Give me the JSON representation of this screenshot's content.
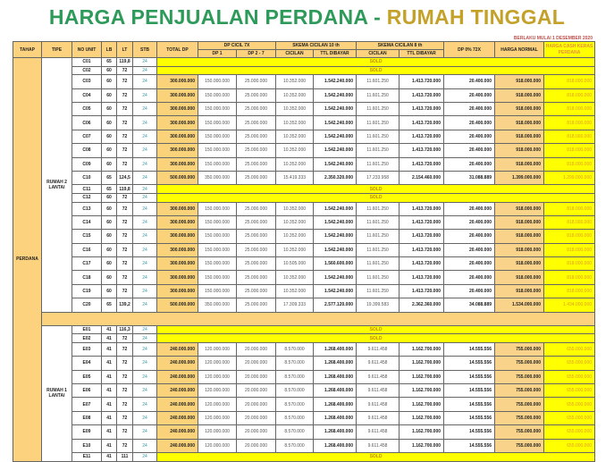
{
  "title": {
    "part1": "HARGA PENJUALAN PERDANA - ",
    "part2": "RUMAH TINGGAL"
  },
  "effective_note": "BERLAKU MULAI 1 DESEMBER 2020",
  "headers": {
    "tahap": "TAHAP",
    "tipe": "TIPE",
    "no_unit": "NO UNIT",
    "lb": "LB",
    "lt": "LT",
    "stb": "STB",
    "total_dp": "TOTAL DP",
    "dp_cicil": "DP CICIL 7X",
    "dp1": "DP 1",
    "dp27": "DP 2 - 7",
    "skema10": "SKEMA CICILAN 10 th",
    "skema8": "SKEMA CICILAN 8 th",
    "cicilan": "CICILAN",
    "ttl": "TTL DIBAYAR",
    "dp0": "DP 0% 72X",
    "harga_normal": "HARGA NORMAL",
    "harga_cash": "HARGA CASH KERAS PERDANA"
  },
  "tahap": "PERDANA",
  "sold_label": "SOLD",
  "groups": [
    {
      "tipe": "RUMAH 2 LANTAI",
      "rows": [
        [
          "C01",
          "65",
          "119,8",
          "24",
          null
        ],
        [
          "C02",
          "60",
          "72",
          "24",
          null
        ],
        [
          "C03",
          "60",
          "72",
          "24",
          [
            "300.000.000",
            "150.000.000",
            "25.000.000",
            "10.352.000",
            "1.542.240.000",
            "11.601.250",
            "1.413.720.000",
            "20.400.000",
            "918.000.000",
            "818.000.000"
          ]
        ],
        [
          "C04",
          "60",
          "72",
          "24",
          [
            "300.000.000",
            "150.000.000",
            "25.000.000",
            "10.352.000",
            "1.542.240.000",
            "11.601.250",
            "1.413.720.000",
            "20.400.000",
            "918.000.000",
            "818.000.000"
          ]
        ],
        [
          "C05",
          "60",
          "72",
          "24",
          [
            "300.000.000",
            "150.000.000",
            "25.000.000",
            "10.352.000",
            "1.542.240.000",
            "11.601.250",
            "1.413.720.000",
            "20.400.000",
            "918.000.000",
            "818.000.000"
          ]
        ],
        [
          "C06",
          "60",
          "72",
          "24",
          [
            "300.000.000",
            "150.000.000",
            "25.000.000",
            "10.352.000",
            "1.542.240.000",
            "11.601.250",
            "1.413.720.000",
            "20.400.000",
            "918.000.000",
            "818.000.000"
          ]
        ],
        [
          "C07",
          "60",
          "72",
          "24",
          [
            "300.000.000",
            "150.000.000",
            "25.000.000",
            "10.352.000",
            "1.542.240.000",
            "11.601.250",
            "1.413.720.000",
            "20.400.000",
            "918.000.000",
            "818.000.000"
          ]
        ],
        [
          "C08",
          "60",
          "72",
          "24",
          [
            "300.000.000",
            "150.000.000",
            "25.000.000",
            "10.352.000",
            "1.542.240.000",
            "11.601.250",
            "1.413.720.000",
            "20.400.000",
            "918.000.000",
            "818.000.000"
          ]
        ],
        [
          "C09",
          "60",
          "72",
          "24",
          [
            "300.000.000",
            "150.000.000",
            "25.000.000",
            "10.352.000",
            "1.542.240.000",
            "11.601.250",
            "1.413.720.000",
            "20.400.000",
            "918.000.000",
            "818.000.000"
          ]
        ],
        [
          "C10",
          "65",
          "124,5",
          "24",
          [
            "500.000.000",
            "350.000.000",
            "25.000.000",
            "15.419.333",
            "2.350.320.000",
            "17.233.958",
            "2.154.460.000",
            "31.088.889",
            "1.399.000.000",
            "1.299.000.000"
          ]
        ],
        [
          "C11",
          "65",
          "119,8",
          "24",
          null
        ],
        [
          "C12",
          "60",
          "72",
          "24",
          null
        ],
        [
          "C13",
          "60",
          "72",
          "24",
          [
            "300.000.000",
            "150.000.000",
            "25.000.000",
            "10.352.000",
            "1.542.240.000",
            "11.601.250",
            "1.413.720.000",
            "20.400.000",
            "918.000.000",
            "818.000.000"
          ]
        ],
        [
          "C14",
          "60",
          "72",
          "24",
          [
            "300.000.000",
            "150.000.000",
            "25.000.000",
            "10.352.000",
            "1.542.240.000",
            "11.601.250",
            "1.413.720.000",
            "20.400.000",
            "918.000.000",
            "818.000.000"
          ]
        ],
        [
          "C15",
          "60",
          "72",
          "24",
          [
            "300.000.000",
            "150.000.000",
            "25.000.000",
            "10.352.000",
            "1.542.240.000",
            "11.601.250",
            "1.413.720.000",
            "20.400.000",
            "918.000.000",
            "818.000.000"
          ]
        ],
        [
          "C16",
          "60",
          "72",
          "24",
          [
            "300.000.000",
            "150.000.000",
            "25.000.000",
            "10.352.000",
            "1.542.240.000",
            "11.601.250",
            "1.413.720.000",
            "20.400.000",
            "918.000.000",
            "818.000.000"
          ]
        ],
        [
          "C17",
          "60",
          "72",
          "24",
          [
            "300.000.000",
            "150.000.000",
            "25.000.000",
            "10.505.000",
            "1.560.600.000",
            "11.601.250",
            "1.413.720.000",
            "20.400.000",
            "918.000.000",
            "818.000.000"
          ]
        ],
        [
          "C18",
          "60",
          "72",
          "24",
          [
            "300.000.000",
            "150.000.000",
            "25.000.000",
            "10.352.000",
            "1.542.240.000",
            "11.601.250",
            "1.413.720.000",
            "20.400.000",
            "918.000.000",
            "818.000.000"
          ]
        ],
        [
          "C19",
          "60",
          "72",
          "24",
          [
            "300.000.000",
            "150.000.000",
            "25.000.000",
            "10.352.000",
            "1.542.240.000",
            "11.601.250",
            "1.413.720.000",
            "20.400.000",
            "918.000.000",
            "818.000.000"
          ]
        ],
        [
          "C20",
          "65",
          "139,2",
          "24",
          [
            "500.000.000",
            "350.000.000",
            "25.000.000",
            "17.309.333",
            "2.577.120.000",
            "19.399.583",
            "2.362.360.000",
            "34.088.889",
            "1.534.000.000",
            "1.434.000.000"
          ]
        ]
      ]
    },
    {
      "tipe": "RUMAH 1 LANTAI",
      "rows": [
        [
          "E01",
          "41",
          "116,3",
          "24",
          null
        ],
        [
          "E02",
          "41",
          "72",
          "24",
          null
        ],
        [
          "E03",
          "41",
          "72",
          "24",
          [
            "240.000.000",
            "120.000.000",
            "20.000.000",
            "8.570.000",
            "1.268.400.000",
            "9.611.458",
            "1.162.700.000",
            "14.555.556",
            "755.000.000",
            "655.000.000"
          ]
        ],
        [
          "E04",
          "41",
          "72",
          "24",
          [
            "240.000.000",
            "120.000.000",
            "20.000.000",
            "8.570.000",
            "1.268.400.000",
            "9.611.458",
            "1.162.700.000",
            "14.555.556",
            "755.000.000",
            "655.000.000"
          ]
        ],
        [
          "E05",
          "41",
          "72",
          "24",
          [
            "240.000.000",
            "120.000.000",
            "20.000.000",
            "8.570.000",
            "1.268.400.000",
            "9.611.458",
            "1.162.700.000",
            "14.555.556",
            "755.000.000",
            "655.000.000"
          ]
        ],
        [
          "E06",
          "41",
          "72",
          "24",
          [
            "240.000.000",
            "120.000.000",
            "20.000.000",
            "8.570.000",
            "1.268.400.000",
            "9.611.458",
            "1.162.700.000",
            "14.555.556",
            "755.000.000",
            "655.000.000"
          ]
        ],
        [
          "E07",
          "41",
          "72",
          "24",
          [
            "240.000.000",
            "120.000.000",
            "20.000.000",
            "8.570.000",
            "1.268.400.000",
            "9.611.458",
            "1.162.700.000",
            "14.555.556",
            "755.000.000",
            "655.000.000"
          ]
        ],
        [
          "E08",
          "41",
          "72",
          "24",
          [
            "240.000.000",
            "120.000.000",
            "20.000.000",
            "8.570.000",
            "1.268.400.000",
            "9.611.458",
            "1.162.700.000",
            "14.555.556",
            "755.000.000",
            "655.000.000"
          ]
        ],
        [
          "E09",
          "41",
          "72",
          "24",
          [
            "240.000.000",
            "120.000.000",
            "20.000.000",
            "8.570.000",
            "1.268.400.000",
            "9.611.458",
            "1.162.700.000",
            "14.555.556",
            "755.000.000",
            "655.000.000"
          ]
        ],
        [
          "E10",
          "41",
          "72",
          "24",
          [
            "240.000.000",
            "120.000.000",
            "20.000.000",
            "8.570.000",
            "1.268.400.000",
            "9.611.458",
            "1.162.700.000",
            "14.555.556",
            "755.000.000",
            "655.000.000"
          ]
        ],
        [
          "E11",
          "41",
          "111",
          "24",
          null
        ]
      ]
    }
  ]
}
